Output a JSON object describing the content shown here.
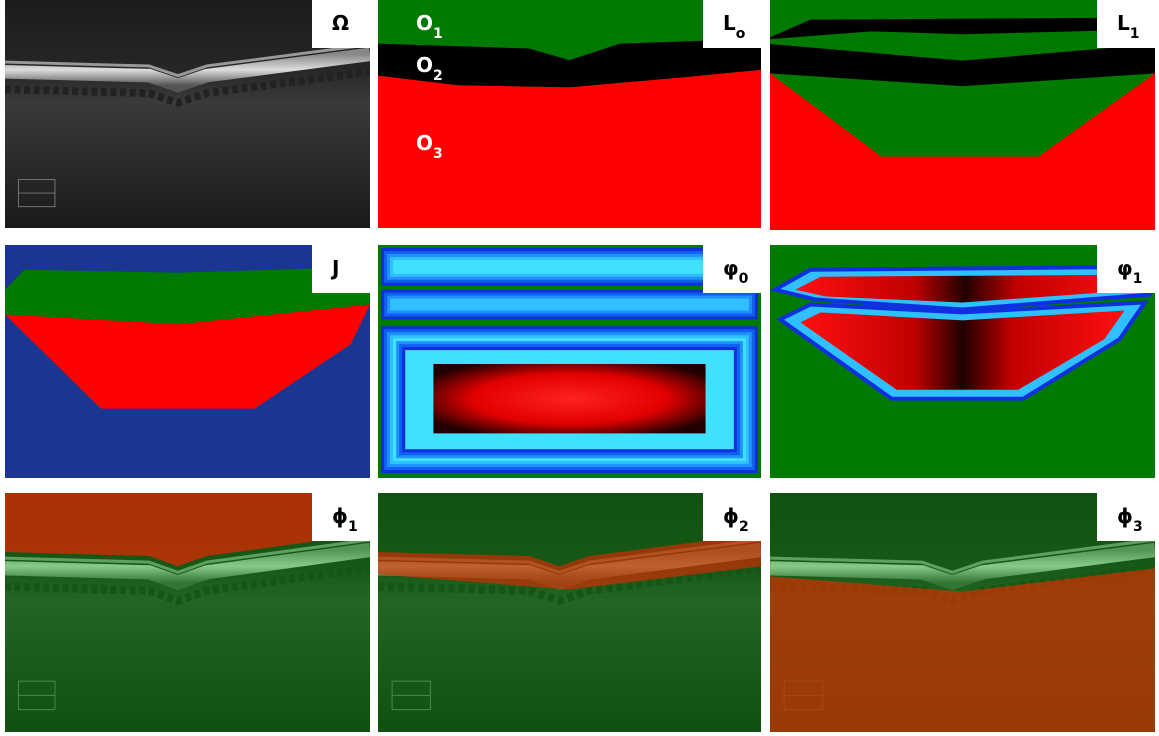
{
  "panels": [
    {
      "label": {
        "base": "Ω"
      }
    },
    {
      "label": {
        "base": "L",
        "sub": "o"
      },
      "regions": [
        {
          "base": "O",
          "sub": "1"
        },
        {
          "base": "O",
          "sub": "2"
        },
        {
          "base": "O",
          "sub": "3"
        }
      ]
    },
    {
      "label": {
        "base": "L",
        "sub": "1"
      }
    },
    {
      "label": {
        "base": "J"
      }
    },
    {
      "label": {
        "base": "φ",
        "sub": "0"
      }
    },
    {
      "label": {
        "base": "φ",
        "sub": "1"
      }
    },
    {
      "label": {
        "base": "ϕ",
        "sub": "1"
      }
    },
    {
      "label": {
        "base": "ϕ",
        "sub": "2"
      }
    },
    {
      "label": {
        "base": "ϕ",
        "sub": "3"
      }
    }
  ]
}
